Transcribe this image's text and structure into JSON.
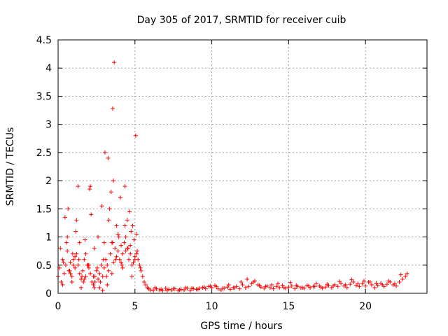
{
  "chart_data": {
    "type": "scatter",
    "title": "Day 305 of 2017, SRMTID for receiver cuib",
    "xlabel": "GPS time / hours",
    "ylabel": "SRMTID / TECUs",
    "xlim": [
      0,
      24
    ],
    "ylim": [
      0,
      4.5
    ],
    "xticks": [
      0,
      5,
      10,
      15,
      20
    ],
    "xtick_labels": [
      "0",
      "5",
      "10",
      "15",
      "20"
    ],
    "yticks": [
      0,
      0.5,
      1,
      1.5,
      2,
      2.5,
      3,
      3.5,
      4,
      4.5
    ],
    "ytick_labels": [
      "0",
      "0.5",
      "1",
      "1.5",
      "2",
      "2.5",
      "3",
      "3.5",
      "4",
      "4.5"
    ],
    "grid": true,
    "marker": "+",
    "color": "#ff0000",
    "series": [
      {
        "name": "SRMTID",
        "x": [
          0.0,
          0.1,
          0.2,
          0.3,
          0.4,
          0.5,
          0.6,
          0.7,
          0.8,
          0.9,
          1.0,
          1.1,
          1.2,
          1.3,
          1.4,
          1.5,
          1.6,
          1.7,
          1.8,
          1.9,
          2.0,
          2.1,
          2.2,
          2.3,
          2.4,
          2.5,
          2.6,
          2.7,
          2.8,
          2.9,
          3.0,
          3.1,
          3.2,
          3.3,
          3.4,
          3.5,
          3.6,
          3.7,
          3.8,
          3.9,
          4.0,
          4.1,
          4.2,
          4.3,
          4.4,
          4.5,
          4.6,
          4.7,
          4.8,
          4.9,
          5.0,
          5.1,
          5.2,
          5.3,
          5.4,
          5.5,
          5.6,
          5.7,
          5.8,
          5.9,
          6.0,
          0.15,
          0.35,
          0.55,
          0.75,
          0.95,
          1.15,
          1.35,
          1.55,
          1.75,
          1.95,
          2.15,
          2.35,
          2.55,
          2.75,
          2.95,
          3.15,
          3.35,
          3.55,
          3.75,
          3.95,
          4.15,
          4.35,
          4.55,
          4.75,
          4.95,
          5.15,
          5.35,
          0.3,
          0.6,
          0.9,
          1.2,
          1.5,
          1.8,
          2.1,
          2.4,
          2.7,
          3.0,
          3.3,
          3.6,
          3.9,
          4.2,
          4.5,
          4.8,
          5.1,
          0.45,
          0.8,
          1.1,
          1.4,
          1.7,
          2.0,
          2.3,
          2.6,
          2.9,
          3.2,
          3.5,
          3.8,
          4.1,
          4.4,
          4.7,
          5.0,
          0.65,
          1.0,
          1.3,
          1.65,
          2.05,
          2.35,
          2.85,
          3.05,
          3.25,
          3.45,
          3.55,
          3.65,
          4.05,
          4.35,
          4.65,
          4.85,
          5.05,
          6.2,
          6.4,
          6.6,
          6.8,
          7.0,
          7.2,
          7.4,
          7.6,
          7.8,
          8.0,
          8.2,
          8.4,
          8.6,
          8.8,
          9.0,
          9.2,
          9.4,
          9.6,
          9.8,
          10.0,
          10.2,
          10.4,
          10.6,
          10.8,
          11.0,
          11.2,
          11.4,
          11.6,
          11.8,
          12.0,
          12.2,
          12.4,
          12.6,
          12.8,
          13.0,
          13.2,
          13.4,
          13.6,
          13.8,
          14.0,
          14.2,
          14.4,
          14.6,
          14.8,
          15.0,
          15.2,
          15.4,
          15.6,
          15.8,
          16.0,
          16.2,
          16.4,
          16.6,
          16.8,
          17.0,
          17.2,
          17.4,
          17.6,
          17.8,
          18.0,
          18.2,
          18.4,
          18.6,
          18.8,
          19.0,
          19.2,
          19.4,
          19.6,
          19.8,
          20.0,
          20.2,
          20.4,
          20.6,
          20.8,
          21.0,
          21.2,
          21.4,
          21.6,
          21.8,
          22.0,
          22.2,
          22.4,
          22.6,
          6.3,
          6.7,
          7.1,
          7.5,
          7.9,
          8.3,
          8.7,
          9.1,
          9.5,
          9.9,
          10.3,
          10.7,
          11.1,
          11.5,
          11.9,
          12.3,
          12.7,
          13.1,
          13.5,
          13.9,
          14.3,
          14.7,
          15.1,
          15.5,
          15.9,
          16.3,
          16.7,
          17.1,
          17.5,
          17.9,
          18.3,
          18.7,
          19.1,
          19.5,
          19.9,
          20.3,
          20.7,
          21.1,
          21.5,
          21.9,
          22.3,
          22.7
        ],
        "y": [
          0.3,
          0.45,
          0.2,
          0.6,
          0.35,
          0.5,
          0.75,
          0.4,
          0.55,
          0.3,
          0.6,
          0.45,
          0.7,
          0.5,
          0.35,
          0.25,
          0.4,
          0.6,
          0.3,
          0.5,
          0.45,
          0.35,
          0.2,
          0.15,
          0.3,
          0.4,
          0.25,
          0.35,
          0.5,
          0.3,
          0.45,
          0.6,
          0.5,
          0.4,
          0.7,
          0.9,
          0.55,
          0.8,
          0.65,
          0.75,
          0.6,
          0.85,
          0.7,
          0.9,
          0.75,
          0.8,
          0.6,
          0.7,
          0.5,
          0.55,
          0.65,
          0.7,
          0.6,
          0.5,
          0.4,
          0.3,
          0.2,
          0.15,
          0.1,
          0.08,
          0.06,
          0.8,
          0.55,
          0.9,
          0.4,
          0.7,
          1.1,
          0.6,
          0.3,
          0.95,
          0.5,
          1.4,
          0.8,
          0.45,
          0.2,
          0.6,
          0.3,
          1.5,
          0.9,
          0.6,
          1.0,
          0.5,
          1.2,
          0.8,
          1.1,
          0.95,
          0.75,
          0.45,
          0.15,
          1.0,
          0.2,
          1.3,
          0.1,
          0.7,
          1.9,
          0.2,
          0.1,
          0.9,
          1.3,
          2.0,
          1.05,
          0.45,
          1.3,
          0.3,
          1.05,
          1.35,
          0.35,
          0.65,
          0.9,
          0.25,
          0.5,
          0.3,
          1.0,
          0.05,
          0.15,
          0.35,
          1.2,
          0.55,
          1.0,
          0.85,
          0.6,
          1.5,
          0.5,
          1.9,
          0.2,
          1.85,
          0.1,
          1.55,
          2.5,
          2.4,
          1.8,
          3.28,
          4.1,
          1.7,
          1.9,
          1.45,
          1.2,
          2.8,
          0.05,
          0.08,
          0.06,
          0.05,
          0.09,
          0.07,
          0.06,
          0.08,
          0.05,
          0.07,
          0.06,
          0.09,
          0.05,
          0.08,
          0.07,
          0.09,
          0.1,
          0.08,
          0.12,
          0.1,
          0.14,
          0.08,
          0.06,
          0.09,
          0.11,
          0.07,
          0.1,
          0.12,
          0.08,
          0.15,
          0.1,
          0.12,
          0.17,
          0.22,
          0.15,
          0.11,
          0.09,
          0.13,
          0.1,
          0.08,
          0.12,
          0.1,
          0.14,
          0.09,
          0.11,
          0.13,
          0.08,
          0.12,
          0.1,
          0.09,
          0.14,
          0.1,
          0.12,
          0.17,
          0.13,
          0.09,
          0.11,
          0.14,
          0.1,
          0.15,
          0.12,
          0.18,
          0.13,
          0.1,
          0.16,
          0.2,
          0.14,
          0.12,
          0.17,
          0.13,
          0.2,
          0.15,
          0.1,
          0.14,
          0.18,
          0.12,
          0.16,
          0.2,
          0.15,
          0.13,
          0.2,
          0.25,
          0.3,
          0.1,
          0.07,
          0.05,
          0.08,
          0.06,
          0.1,
          0.09,
          0.07,
          0.11,
          0.13,
          0.12,
          0.09,
          0.15,
          0.1,
          0.2,
          0.25,
          0.2,
          0.14,
          0.12,
          0.15,
          0.17,
          0.1,
          0.19,
          0.14,
          0.1,
          0.13,
          0.12,
          0.11,
          0.16,
          0.13,
          0.21,
          0.15,
          0.24,
          0.17,
          0.22,
          0.2,
          0.18,
          0.15,
          0.22,
          0.17,
          0.33,
          0.35
        ]
      }
    ]
  }
}
